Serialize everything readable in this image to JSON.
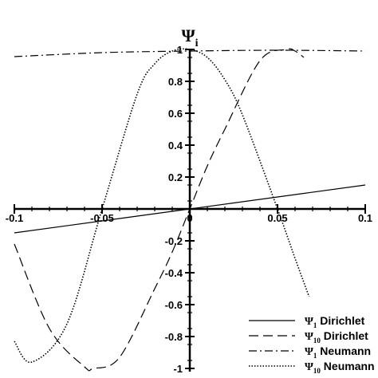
{
  "chart_data": {
    "type": "line",
    "title": "",
    "ylabel": "Ψ",
    "ylabel_sub": "i",
    "xlim": [
      -0.1,
      0.1
    ],
    "ylim": [
      -1,
      1
    ],
    "x_ticks": [
      -0.1,
      -0.05,
      0,
      0.05,
      0.1
    ],
    "x_tick_labels": [
      "-0.1",
      "-0.05",
      "0",
      "0.05",
      "0.1"
    ],
    "y_ticks": [
      -1,
      -0.8,
      -0.6,
      -0.4,
      -0.2,
      0.2,
      0.4,
      0.6,
      0.8,
      1
    ],
    "y_tick_labels": [
      "-1",
      "-0.8",
      "-0.6",
      "-0.4",
      "-0.2",
      "0.2",
      "0.4",
      "0.6",
      "0.8",
      "1"
    ],
    "grid": false,
    "legend_position": "bottom-right",
    "series": [
      {
        "name": "Ψ1 Dirichlet",
        "symbol": "Ψ",
        "sub": "1",
        "label": "Dirichlet",
        "style": "solid",
        "x": [
          -0.1,
          -0.05,
          0,
          0.05,
          0.1
        ],
        "y": [
          -0.15,
          -0.075,
          0,
          0.075,
          0.15
        ]
      },
      {
        "name": "Ψ10 Dirichlet",
        "symbol": "Ψ",
        "sub": "10",
        "label": "Dirichlet",
        "style": "dashed",
        "x": [
          -0.1,
          -0.08,
          -0.06,
          -0.055,
          -0.04,
          -0.02,
          -0.01,
          0,
          0.01,
          0.02,
          0.04,
          0.055,
          0.06,
          0.065
        ],
        "y": [
          -0.22,
          -0.75,
          -0.99,
          -1.0,
          -0.93,
          -0.5,
          -0.27,
          0.0,
          0.27,
          0.5,
          0.93,
          1.0,
          0.99,
          0.95
        ]
      },
      {
        "name": "Ψ1 Neumann",
        "symbol": "Ψ",
        "sub": "1",
        "label": "Neumann",
        "style": "dashdot",
        "x": [
          -0.1,
          -0.05,
          0,
          0.05,
          0.1
        ],
        "y": [
          0.955,
          0.98,
          0.99,
          0.995,
          0.99
        ]
      },
      {
        "name": "Ψ10 Neumann",
        "symbol": "Ψ",
        "sub": "10",
        "label": "Neumann",
        "style": "dotted",
        "x": [
          -0.1,
          -0.09,
          -0.07,
          -0.05,
          -0.03,
          -0.02,
          -0.01,
          0,
          0.01,
          0.02,
          0.03,
          0.05,
          0.06,
          0.068
        ],
        "y": [
          -0.83,
          -0.96,
          -0.72,
          0.0,
          0.72,
          0.91,
          0.99,
          1.0,
          0.95,
          0.81,
          0.59,
          0.0,
          -0.31,
          -0.55
        ]
      }
    ]
  },
  "colors": {
    "line": "#000000",
    "background": "#ffffff"
  }
}
